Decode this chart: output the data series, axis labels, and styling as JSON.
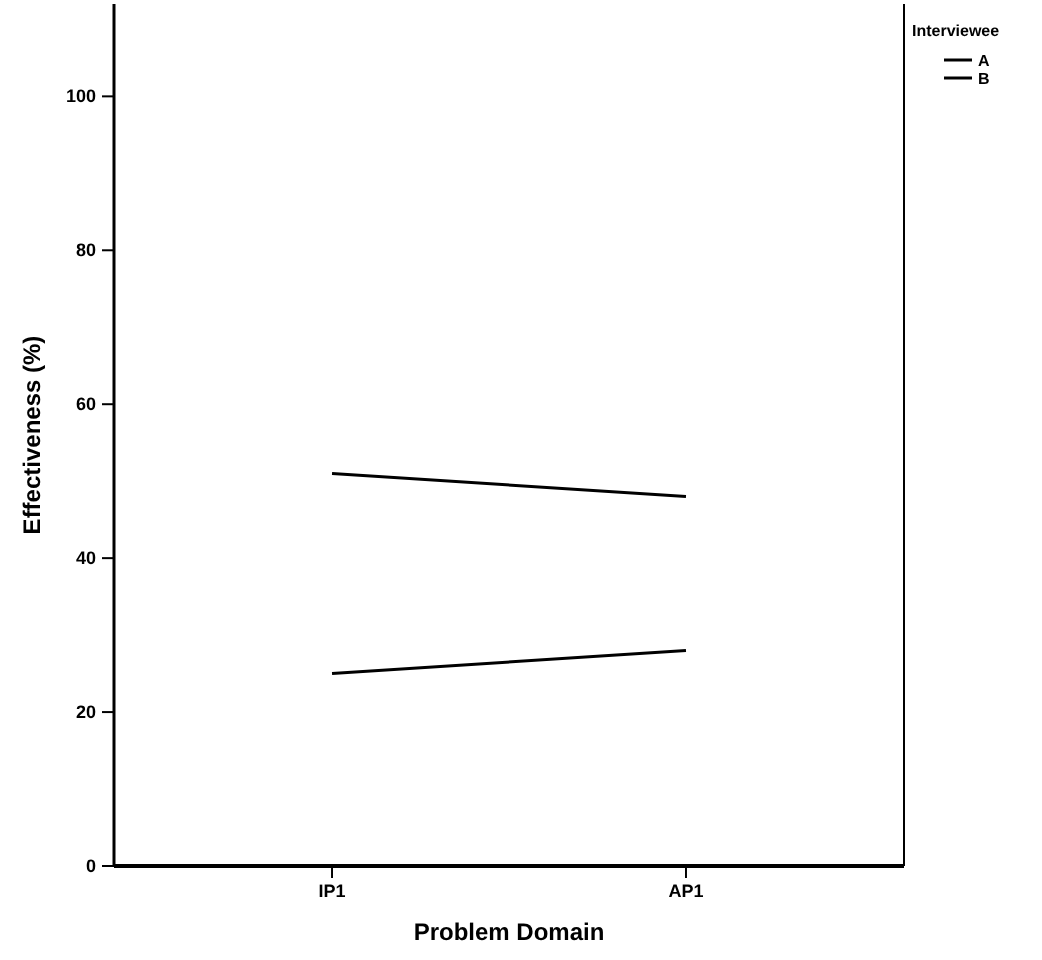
{
  "chart_data": {
    "type": "line",
    "xlabel": "Problem Domain",
    "ylabel": "Effectiveness (%)",
    "legend_title": "Interviewee",
    "categories": [
      "IP1",
      "AP1"
    ],
    "series": [
      {
        "name": "A",
        "color": "#000000",
        "values": [
          51,
          48
        ]
      },
      {
        "name": "B",
        "color": "#000000",
        "values": [
          25,
          28
        ]
      }
    ],
    "ylim": [
      0,
      112
    ],
    "yticks": [
      0,
      20,
      40,
      60,
      80,
      100
    ],
    "legend": "top right",
    "grid": false,
    "marker": "none",
    "line_style": "solid"
  }
}
